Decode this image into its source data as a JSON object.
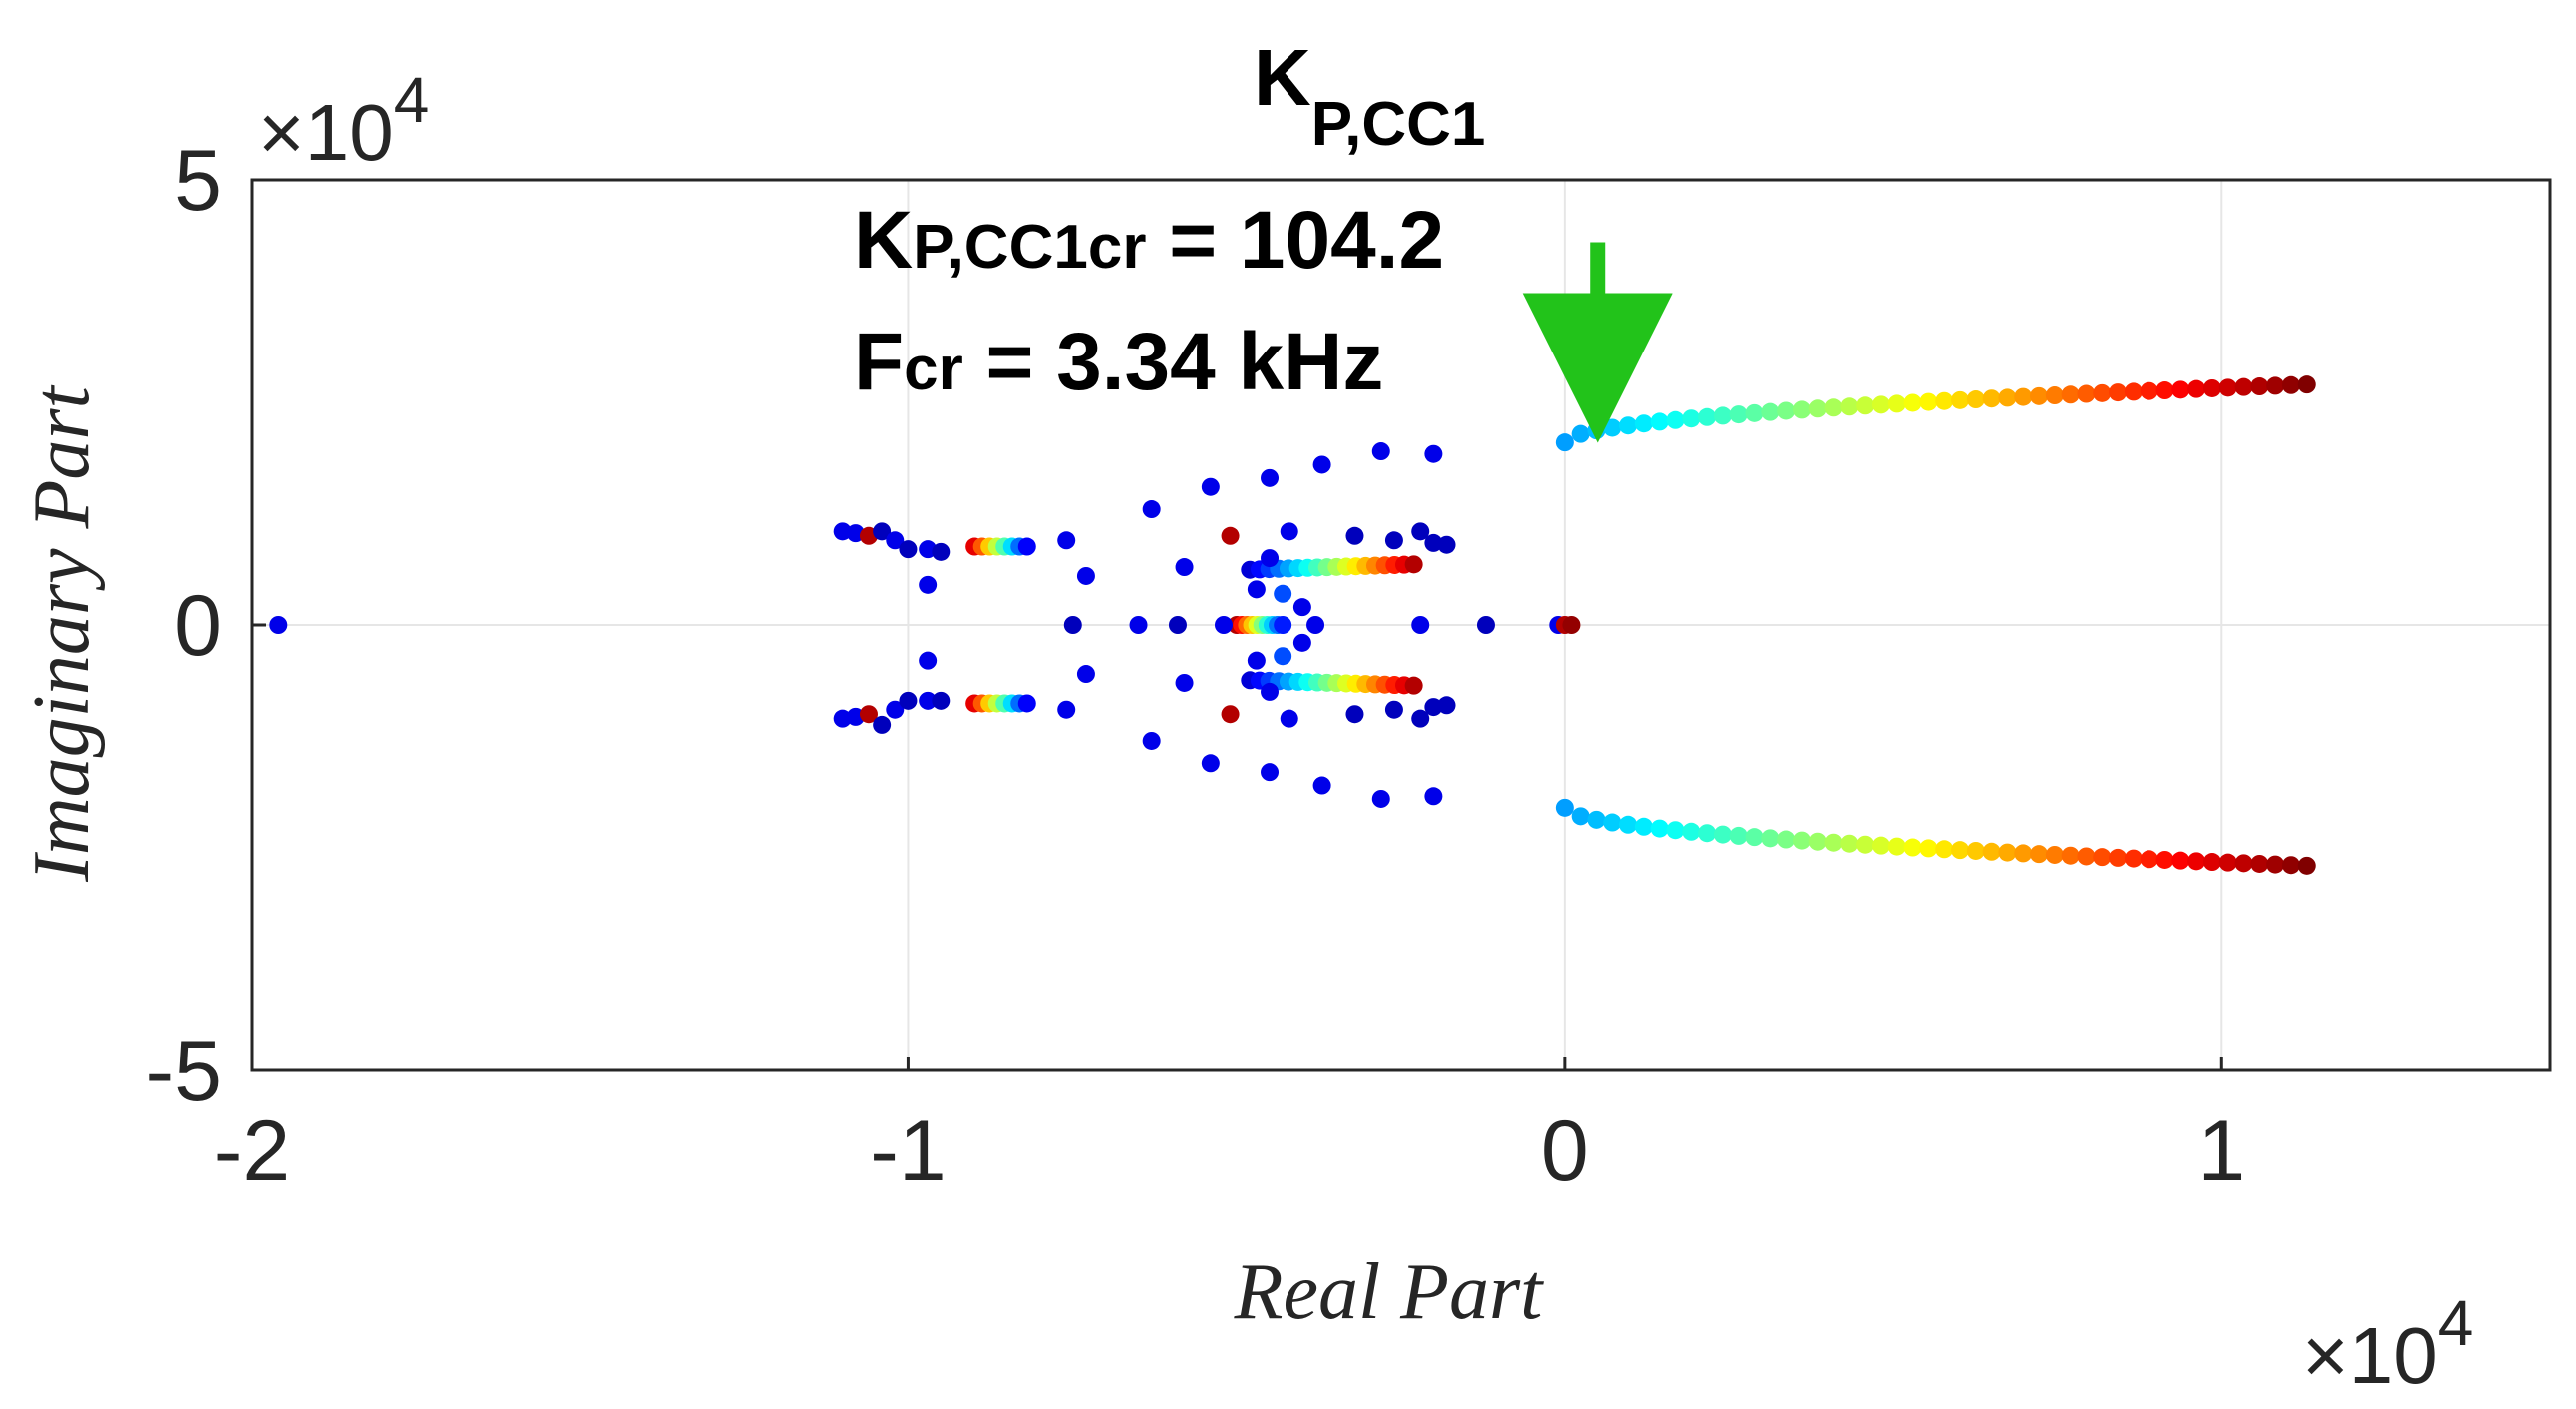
{
  "chart_data": {
    "type": "scatter",
    "title": "K",
    "title_subscript": "P,CC1",
    "xlabel": "Real Part",
    "ylabel": "Imaginary Part",
    "x_exponent_base": "×10",
    "x_exponent_power": "4",
    "y_exponent_base": "×10",
    "y_exponent_power": "4",
    "xlim": [
      -2.0,
      1.5
    ],
    "ylim": [
      -5,
      5
    ],
    "xticks": [
      -2,
      -1,
      0,
      1
    ],
    "xtick_labels": [
      "-2",
      "-1",
      "0",
      "1"
    ],
    "yticks": [
      -5,
      0,
      5
    ],
    "ytick_labels": [
      "-5",
      "0",
      "5"
    ],
    "grid": true,
    "colormap": "jet",
    "colormap_stops": [
      "#00008f",
      "#0000ff",
      "#0080ff",
      "#00ffff",
      "#80ff80",
      "#ffff00",
      "#ff8000",
      "#ff0000",
      "#800000"
    ],
    "annotation": {
      "line1_main": "K",
      "line1_sub": "P,CC1cr",
      "line1_value": " = 104.2",
      "line2_main": "F",
      "line2_sub": "cr",
      "line2_value": " = 3.34 kHz",
      "arrow_color": "#22c31a",
      "arrow_target_x": 0.05,
      "arrow_target_y": 2.55,
      "arrow_start_y": 4.3
    },
    "series": [
      {
        "name": "dominant-branch-upper",
        "x_start": 0.0,
        "x_end": 1.13,
        "y_start": 2.05,
        "y_end": 2.7,
        "count": 48,
        "color_start": 0.28,
        "color_end": 1.0
      },
      {
        "name": "dominant-branch-lower",
        "x_start": 0.0,
        "x_end": 1.13,
        "y_start": -2.05,
        "y_end": -2.7,
        "count": 48,
        "color_start": 0.28,
        "color_end": 1.0
      },
      {
        "name": "mid-branch-upper",
        "x_start": -0.48,
        "x_end": -0.23,
        "y_start": 0.62,
        "y_end": 0.68,
        "count": 18,
        "color_start": 0.08,
        "color_end": 0.95
      },
      {
        "name": "mid-branch-lower",
        "x_start": -0.48,
        "x_end": -0.23,
        "y_start": -0.62,
        "y_end": -0.68,
        "count": 18,
        "color_start": 0.08,
        "color_end": 0.95
      },
      {
        "name": "left-branch-upper",
        "x_start": -0.9,
        "x_end": -0.82,
        "y_start": 0.88,
        "y_end": 0.88,
        "count": 8,
        "color_start": 0.9,
        "color_end": 0.12
      },
      {
        "name": "left-branch-lower",
        "x_start": -0.9,
        "x_end": -0.82,
        "y_start": -0.88,
        "y_end": -0.88,
        "count": 8,
        "color_start": 0.9,
        "color_end": 0.12
      },
      {
        "name": "center-cluster",
        "x_start": -0.5,
        "x_end": -0.43,
        "y_start": 0.0,
        "y_end": 0.0,
        "count": 10,
        "color_start": 0.95,
        "color_end": 0.15
      }
    ],
    "points": [
      [
        -1.96,
        0.0,
        0.1
      ],
      [
        -1.1,
        1.05,
        0.1
      ],
      [
        -1.08,
        1.03,
        0.1
      ],
      [
        -1.06,
        1.0,
        0.95
      ],
      [
        -1.04,
        1.05,
        0.05
      ],
      [
        -1.02,
        0.95,
        0.1
      ],
      [
        -1.0,
        0.85,
        0.05
      ],
      [
        -0.97,
        0.85,
        0.1
      ],
      [
        -0.95,
        0.82,
        0.05
      ],
      [
        -1.1,
        -1.05,
        0.1
      ],
      [
        -1.08,
        -1.03,
        0.1
      ],
      [
        -1.06,
        -1.0,
        0.95
      ],
      [
        -1.04,
        -1.12,
        0.05
      ],
      [
        -1.02,
        -0.95,
        0.1
      ],
      [
        -1.0,
        -0.85,
        0.05
      ],
      [
        -0.97,
        -0.85,
        0.1
      ],
      [
        -0.95,
        -0.85,
        0.05
      ],
      [
        -0.97,
        0.45,
        0.1
      ],
      [
        -0.97,
        -0.4,
        0.1
      ],
      [
        -0.76,
        0.95,
        0.1
      ],
      [
        -0.73,
        0.55,
        0.1
      ],
      [
        -0.75,
        0.0,
        0.05
      ],
      [
        -0.73,
        -0.55,
        0.1
      ],
      [
        -0.76,
        -0.95,
        0.1
      ],
      [
        -0.65,
        0.0,
        0.1
      ],
      [
        -0.63,
        1.3,
        0.1
      ],
      [
        -0.63,
        -1.3,
        0.1
      ],
      [
        -0.59,
        0.0,
        0.05
      ],
      [
        -0.58,
        0.65,
        0.1
      ],
      [
        -0.58,
        -0.65,
        0.1
      ],
      [
        -0.54,
        1.55,
        0.1
      ],
      [
        -0.54,
        -1.55,
        0.1
      ],
      [
        -0.51,
        1.0,
        0.95
      ],
      [
        -0.51,
        -1.0,
        0.95
      ],
      [
        -0.52,
        0.0,
        0.1
      ],
      [
        -0.47,
        0.4,
        0.1
      ],
      [
        -0.47,
        -0.4,
        0.1
      ],
      [
        -0.45,
        0.75,
        0.1
      ],
      [
        -0.45,
        -0.75,
        0.1
      ],
      [
        -0.43,
        0.35,
        0.2
      ],
      [
        -0.43,
        -0.35,
        0.2
      ],
      [
        -0.45,
        1.65,
        0.1
      ],
      [
        -0.45,
        -1.65,
        0.1
      ],
      [
        -0.42,
        1.05,
        0.1
      ],
      [
        -0.42,
        -1.05,
        0.1
      ],
      [
        -0.38,
        0.0,
        0.1
      ],
      [
        -0.4,
        0.2,
        0.1
      ],
      [
        -0.4,
        -0.2,
        0.1
      ],
      [
        -0.37,
        1.8,
        0.1
      ],
      [
        -0.37,
        -1.8,
        0.1
      ],
      [
        -0.32,
        1.0,
        0.05
      ],
      [
        -0.32,
        -1.0,
        0.05
      ],
      [
        -0.28,
        1.95,
        0.1
      ],
      [
        -0.28,
        -1.95,
        0.1
      ],
      [
        -0.26,
        0.95,
        0.05
      ],
      [
        -0.26,
        -0.95,
        0.05
      ],
      [
        -0.22,
        0.0,
        0.1
      ],
      [
        -0.22,
        1.05,
        0.05
      ],
      [
        -0.22,
        -1.05,
        0.05
      ],
      [
        -0.2,
        1.92,
        0.1
      ],
      [
        -0.2,
        -1.92,
        0.1
      ],
      [
        -0.2,
        0.92,
        0.05
      ],
      [
        -0.2,
        -0.92,
        0.05
      ],
      [
        -0.18,
        0.9,
        0.05
      ],
      [
        -0.18,
        -0.9,
        0.05
      ],
      [
        -0.12,
        0.0,
        0.05
      ],
      [
        -0.01,
        0.0,
        0.1
      ],
      [
        0.0,
        0.0,
        0.95
      ],
      [
        0.01,
        0.0,
        0.98
      ]
    ]
  }
}
